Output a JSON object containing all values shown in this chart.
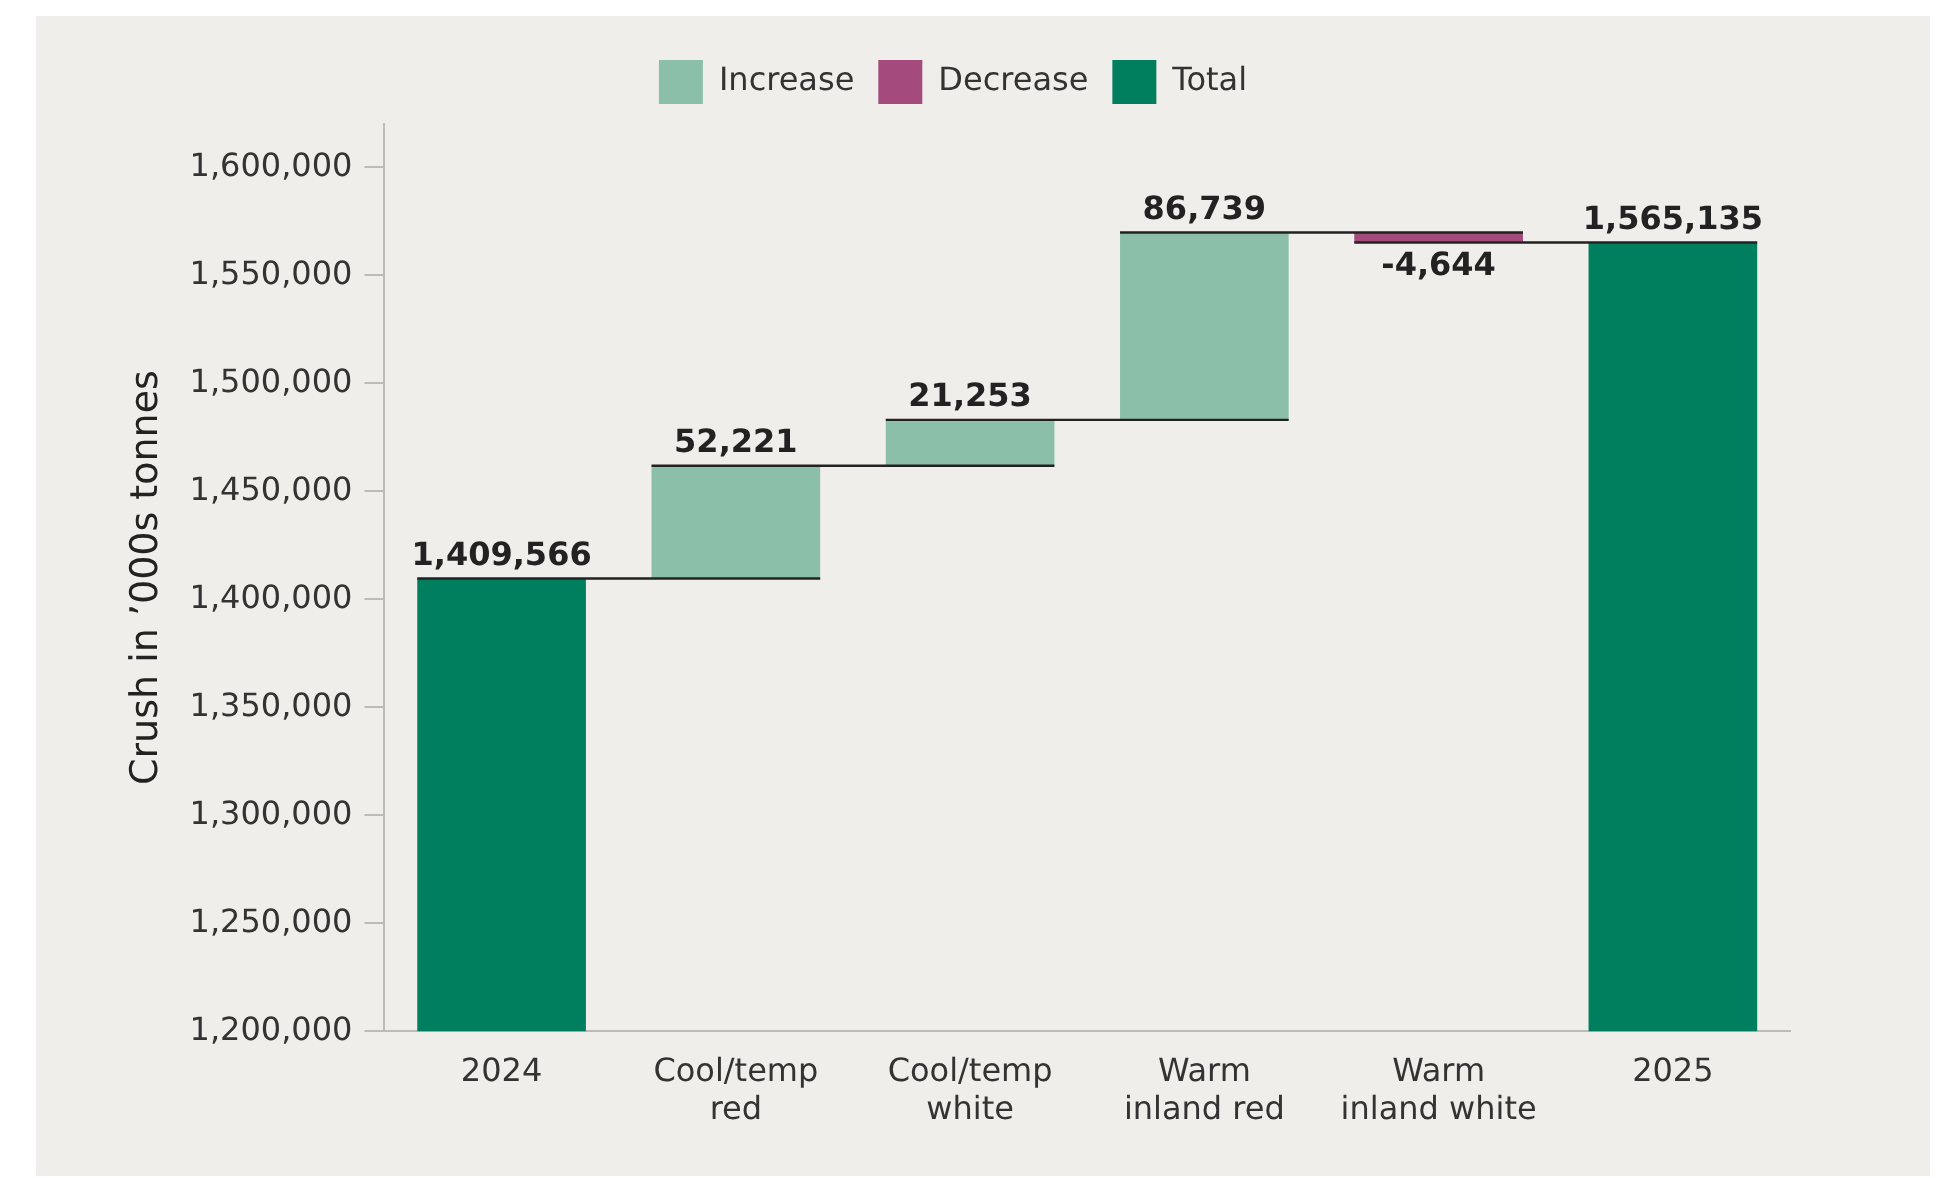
{
  "chart_data": {
    "type": "bar",
    "ylabel": "Crush in ’000s tonnes",
    "categories": [
      "2024",
      "Cool/temp red",
      "Cool/temp white",
      "Warm inland red",
      "Warm inland white",
      "2025"
    ],
    "series": [
      {
        "name": "Increase",
        "color": "#8cbfaa",
        "values": [
          null,
          52221,
          21253,
          86739,
          null,
          null
        ],
        "base": [
          null,
          1409566,
          1461787,
          1483040,
          null,
          null
        ],
        "value_labels": [
          null,
          "52,221",
          "21,253",
          "86,739",
          null,
          null
        ]
      },
      {
        "name": "Decrease",
        "color": "#a54a7c",
        "values": [
          null,
          null,
          null,
          null,
          -4644,
          null
        ],
        "base": [
          null,
          null,
          null,
          null,
          1569779,
          null
        ],
        "value_labels": [
          null,
          null,
          null,
          null,
          "-4,644",
          null
        ]
      },
      {
        "name": "Total",
        "color": "#007f5f",
        "values": [
          1409566,
          null,
          null,
          null,
          null,
          1565135
        ],
        "value_labels": [
          "1,409,566",
          null,
          null,
          null,
          null,
          "1,565,135"
        ]
      }
    ],
    "ylim": [
      1200000,
      1620000
    ],
    "yticks": [
      {
        "value": 1200000,
        "label": "1,200,000"
      },
      {
        "value": 1250000,
        "label": "1,250,000"
      },
      {
        "value": 1300000,
        "label": "1,300,000"
      },
      {
        "value": 1350000,
        "label": "1,350,000"
      },
      {
        "value": 1400000,
        "label": "1,400,000"
      },
      {
        "value": 1450000,
        "label": "1,450,000"
      },
      {
        "value": 1500000,
        "label": "1,500,000"
      },
      {
        "value": 1550000,
        "label": "1,550,000"
      },
      {
        "value": 1600000,
        "label": "1,600,000"
      }
    ],
    "grid": false,
    "legend": "top"
  }
}
